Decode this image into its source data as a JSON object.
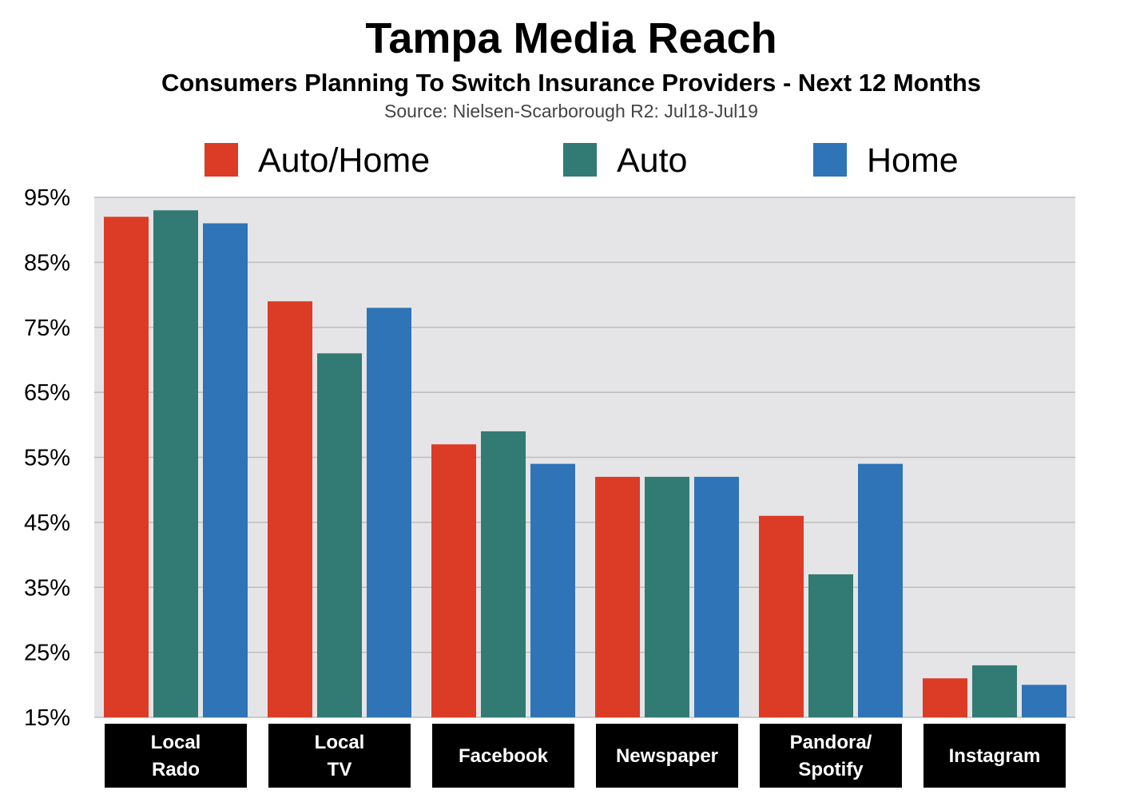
{
  "colors": {
    "auto_home": "#dc3b26",
    "auto": "#327a74",
    "home": "#2f74b7",
    "plot_background": "#e5e5e8",
    "gridline": "#bdbdbd",
    "category_label_background": "#000000"
  },
  "chart_data": {
    "type": "bar",
    "title": "Tampa Media Reach",
    "subtitle": "Consumers Planning To Switch Insurance Providers - Next 12 Months",
    "source": "Source: Nielsen-Scarborough R2: Jul18-Jul19",
    "categories": [
      [
        "Local",
        "Rado"
      ],
      [
        "Local",
        "TV"
      ],
      [
        "Facebook"
      ],
      [
        "Newspaper"
      ],
      [
        "Pandora/",
        "Spotify"
      ],
      [
        "Instagram"
      ]
    ],
    "series": [
      {
        "name": "Auto/Home",
        "color": "#dc3b26",
        "values": [
          92,
          79,
          57,
          52,
          46,
          21
        ]
      },
      {
        "name": "Auto",
        "color": "#327a74",
        "values": [
          93,
          71,
          59,
          52,
          37,
          23
        ]
      },
      {
        "name": "Home",
        "color": "#2f74b7",
        "values": [
          91,
          78,
          54,
          52,
          54,
          20
        ]
      }
    ],
    "ylim": [
      15,
      95
    ],
    "yticks": [
      15,
      25,
      35,
      45,
      55,
      65,
      75,
      85,
      95
    ],
    "ytick_labels": [
      "15%",
      "25%",
      "35%",
      "45%",
      "55%",
      "65%",
      "75%",
      "85%",
      "95%"
    ],
    "grid": true,
    "legend_position": "top"
  }
}
